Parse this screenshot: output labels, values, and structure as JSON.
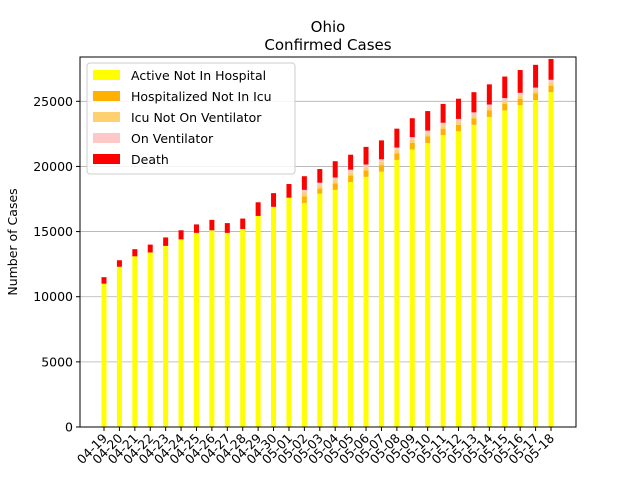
{
  "chart_data": {
    "type": "bar",
    "stacked": true,
    "title": "Ohio",
    "subtitle": "Confirmed Cases",
    "xlabel": "",
    "ylabel": "Number of Cases",
    "ylim": [
      0,
      28400
    ],
    "yticks": [
      0,
      5000,
      10000,
      15000,
      20000,
      25000
    ],
    "ytick_labels": [
      "0",
      "5000",
      "10000",
      "15000",
      "20000",
      "25000"
    ],
    "grid": "y",
    "legend": "top-left",
    "categories": [
      "04-19",
      "04-20",
      "04-21",
      "04-22",
      "04-23",
      "04-24",
      "04-25",
      "04-26",
      "04-27",
      "04-28",
      "04-29",
      "04-30",
      "05-01",
      "05-02",
      "05-03",
      "05-04",
      "05-05",
      "05-06",
      "05-07",
      "05-08",
      "05-09",
      "05-10",
      "05-11",
      "05-12",
      "05-13",
      "05-14",
      "05-15",
      "05-16",
      "05-17",
      "05-18"
    ],
    "series": [
      {
        "name": "Active Not In Hospital",
        "color": "#ffff00",
        "values": [
          11000,
          12300,
          13100,
          13400,
          13900,
          14400,
          14900,
          15100,
          14900,
          15200,
          16200,
          16900,
          17600,
          17200,
          17900,
          18200,
          18800,
          19200,
          19600,
          20500,
          21300,
          21800,
          22400,
          22700,
          23200,
          23800,
          24300,
          24700,
          25100,
          25700
        ]
      },
      {
        "name": "Hospitalized Not In Icu",
        "color": "#ffb000",
        "values": [
          0,
          0,
          0,
          0,
          0,
          0,
          0,
          0,
          0,
          0,
          0,
          0,
          0,
          500,
          400,
          500,
          500,
          500,
          500,
          500,
          500,
          500,
          500,
          500,
          500,
          500,
          500,
          500,
          500,
          500
        ]
      },
      {
        "name": "Icu Not On Ventilator",
        "color": "#ffd070",
        "values": [
          0,
          0,
          0,
          0,
          0,
          0,
          0,
          0,
          0,
          0,
          0,
          0,
          0,
          300,
          250,
          250,
          250,
          250,
          250,
          250,
          250,
          250,
          250,
          250,
          250,
          250,
          250,
          250,
          250,
          250
        ]
      },
      {
        "name": "On Ventilator",
        "color": "#ffc8c8",
        "values": [
          0,
          0,
          0,
          0,
          0,
          0,
          0,
          0,
          0,
          0,
          0,
          0,
          0,
          200,
          200,
          200,
          200,
          200,
          200,
          200,
          200,
          200,
          200,
          200,
          200,
          200,
          200,
          200,
          200,
          200
        ]
      },
      {
        "name": "Death",
        "color": "#ff0000",
        "values": [
          500,
          500,
          550,
          600,
          650,
          700,
          650,
          800,
          750,
          800,
          1050,
          1050,
          1050,
          1050,
          1050,
          1250,
          1150,
          1350,
          1450,
          1450,
          1450,
          1500,
          1450,
          1550,
          1550,
          1550,
          1650,
          1750,
          1750,
          1600
        ]
      }
    ]
  }
}
